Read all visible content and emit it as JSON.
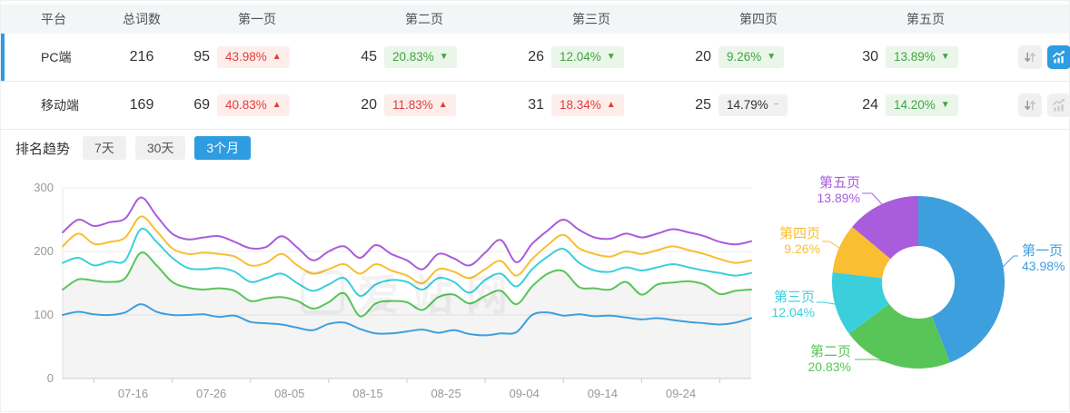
{
  "table": {
    "headers": [
      "平台",
      "总词数",
      "第一页",
      "第二页",
      "第三页",
      "第四页",
      "第五页"
    ],
    "rows": [
      {
        "platform": "PC端",
        "total": "216",
        "state": "row-selected",
        "trend_btn_state": "btn-active",
        "pages": [
          {
            "count": "95",
            "pct": "43.98%",
            "arrow": "▲",
            "tone": "tone-red"
          },
          {
            "count": "45",
            "pct": "20.83%",
            "arrow": "▼",
            "tone": "tone-green"
          },
          {
            "count": "26",
            "pct": "12.04%",
            "arrow": "▼",
            "tone": "tone-green"
          },
          {
            "count": "20",
            "pct": "9.26%",
            "arrow": "▼",
            "tone": "tone-green"
          },
          {
            "count": "30",
            "pct": "13.89%",
            "arrow": "▼",
            "tone": "tone-green"
          }
        ]
      },
      {
        "platform": "移动端",
        "total": "169",
        "state": "",
        "trend_btn_state": "",
        "pages": [
          {
            "count": "69",
            "pct": "40.83%",
            "arrow": "▲",
            "tone": "tone-red"
          },
          {
            "count": "20",
            "pct": "11.83%",
            "arrow": "▲",
            "tone": "tone-red"
          },
          {
            "count": "31",
            "pct": "18.34%",
            "arrow": "▲",
            "tone": "tone-red"
          },
          {
            "count": "25",
            "pct": "14.79%",
            "arrow": "−",
            "tone": "tone-gray"
          },
          {
            "count": "24",
            "pct": "14.20%",
            "arrow": "▼",
            "tone": "tone-green"
          }
        ]
      }
    ]
  },
  "trend_bar": {
    "title": "排名趋势",
    "tabs": [
      {
        "label": "7天",
        "state": ""
      },
      {
        "label": "30天",
        "state": ""
      },
      {
        "label": "3个月",
        "state": "tab-active"
      }
    ]
  },
  "watermark": "爱站网",
  "colors": {
    "accent": "#2d9ce0",
    "rise_red": "#e23c38",
    "fall_green": "#3fa53f",
    "page1": "#3E9FDE",
    "page2": "#58C558",
    "page3": "#3BCFDC",
    "page4": "#F9BE31",
    "page5": "#A95CDB"
  },
  "chart_data": [
    {
      "type": "line",
      "title": "排名趋势",
      "x_labels": [
        "07-16",
        "07-26",
        "08-05",
        "08-15",
        "08-25",
        "09-04",
        "09-14",
        "09-24"
      ],
      "point_step_days": 2,
      "total_days": 88,
      "ylim": [
        0,
        300
      ],
      "yticks": [
        0,
        100,
        200,
        300
      ],
      "grid": true,
      "legend": "none",
      "value_mode": "stacked-cumulative",
      "series": [
        {
          "name": "第一页",
          "color": "#3E9FDE",
          "area": false,
          "values": [
            100,
            105,
            101,
            100,
            104,
            117,
            105,
            100,
            100,
            101,
            97,
            99,
            89,
            87,
            85,
            80,
            76,
            86,
            88,
            78,
            71,
            71,
            74,
            77,
            72,
            76,
            70,
            68,
            71,
            73,
            100,
            104,
            99,
            101,
            98,
            99,
            96,
            93,
            95,
            92,
            89,
            87,
            85,
            88,
            95
          ]
        },
        {
          "name": "第二页",
          "color": "#58C558",
          "area": true,
          "values": [
            140,
            156,
            154,
            152,
            158,
            198,
            178,
            152,
            143,
            140,
            142,
            138,
            122,
            126,
            128,
            122,
            110,
            120,
            134,
            98,
            118,
            122,
            120,
            108,
            128,
            132,
            118,
            130,
            138,
            117,
            145,
            165,
            169,
            144,
            142,
            140,
            152,
            132,
            148,
            151,
            153,
            148,
            133,
            138,
            140
          ]
        },
        {
          "name": "第三页",
          "color": "#3BCFDC",
          "area": false,
          "values": [
            182,
            190,
            178,
            184,
            186,
            235,
            215,
            190,
            174,
            172,
            174,
            168,
            152,
            158,
            165,
            150,
            138,
            148,
            158,
            130,
            148,
            155,
            152,
            140,
            158,
            152,
            135,
            155,
            165,
            145,
            172,
            192,
            204,
            182,
            170,
            168,
            175,
            170,
            175,
            180,
            175,
            170,
            166,
            162,
            166
          ]
        },
        {
          "name": "第四页",
          "color": "#F9BE31",
          "area": false,
          "values": [
            208,
            228,
            212,
            215,
            222,
            255,
            232,
            205,
            196,
            198,
            196,
            192,
            178,
            182,
            196,
            178,
            165,
            172,
            180,
            165,
            180,
            170,
            162,
            150,
            172,
            168,
            158,
            172,
            185,
            162,
            188,
            210,
            226,
            205,
            196,
            192,
            200,
            196,
            202,
            208,
            202,
            196,
            188,
            182,
            186
          ]
        },
        {
          "name": "第五页",
          "color": "#A95CDB",
          "area": false,
          "values": [
            230,
            250,
            240,
            246,
            252,
            285,
            256,
            228,
            219,
            222,
            224,
            215,
            205,
            207,
            224,
            206,
            186,
            200,
            208,
            190,
            210,
            196,
            186,
            172,
            196,
            189,
            178,
            198,
            218,
            183,
            212,
            233,
            250,
            234,
            222,
            220,
            228,
            222,
            228,
            235,
            230,
            224,
            215,
            211,
            216
          ]
        }
      ]
    },
    {
      "type": "donut",
      "legend": "callout-labels",
      "slices": [
        {
          "label": "第一页",
          "pct": "43.98%",
          "value": 43.98,
          "color": "#3E9FDE"
        },
        {
          "label": "第二页",
          "pct": "20.83%",
          "value": 20.83,
          "color": "#58C558"
        },
        {
          "label": "第三页",
          "pct": "12.04%",
          "value": 12.04,
          "color": "#3BCFDC"
        },
        {
          "label": "第四页",
          "pct": "9.26%",
          "value": 9.26,
          "color": "#F9BE31"
        },
        {
          "label": "第五页",
          "pct": "13.89%",
          "value": 13.89,
          "color": "#A95CDB"
        }
      ]
    }
  ]
}
